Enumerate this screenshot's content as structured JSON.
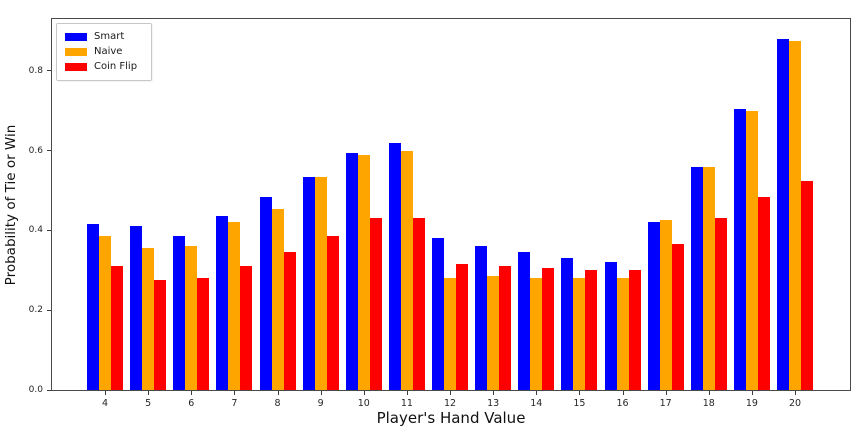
{
  "figure": {
    "background": "#ffffff"
  },
  "chart_data": {
    "type": "bar",
    "title": "",
    "xlabel": "Player's Hand Value",
    "ylabel": "Probability of Tie or Win",
    "categories": [
      "4",
      "5",
      "6",
      "7",
      "8",
      "9",
      "10",
      "11",
      "12",
      "13",
      "14",
      "15",
      "16",
      "17",
      "18",
      "19",
      "20"
    ],
    "series": [
      {
        "name": "Smart",
        "color": "#0000ff",
        "values": [
          0.415,
          0.41,
          0.385,
          0.435,
          0.485,
          0.535,
          0.595,
          0.62,
          0.38,
          0.36,
          0.345,
          0.33,
          0.32,
          0.42,
          0.56,
          0.705,
          0.88
        ]
      },
      {
        "name": "Naive",
        "color": "#ffa500",
        "values": [
          0.385,
          0.355,
          0.36,
          0.42,
          0.455,
          0.535,
          0.59,
          0.6,
          0.28,
          0.285,
          0.28,
          0.28,
          0.28,
          0.425,
          0.56,
          0.7,
          0.875
        ]
      },
      {
        "name": "Coin Flip",
        "color": "#ff0000",
        "values": [
          0.31,
          0.275,
          0.28,
          0.31,
          0.345,
          0.385,
          0.43,
          0.43,
          0.315,
          0.31,
          0.305,
          0.3,
          0.3,
          0.365,
          0.43,
          0.485,
          0.525
        ]
      }
    ],
    "ylim": [
      0,
      0.93
    ],
    "yticks": [
      "0.0",
      "0.2",
      "0.4",
      "0.6",
      "0.8"
    ],
    "grid": false,
    "legend_position": "upper left"
  }
}
